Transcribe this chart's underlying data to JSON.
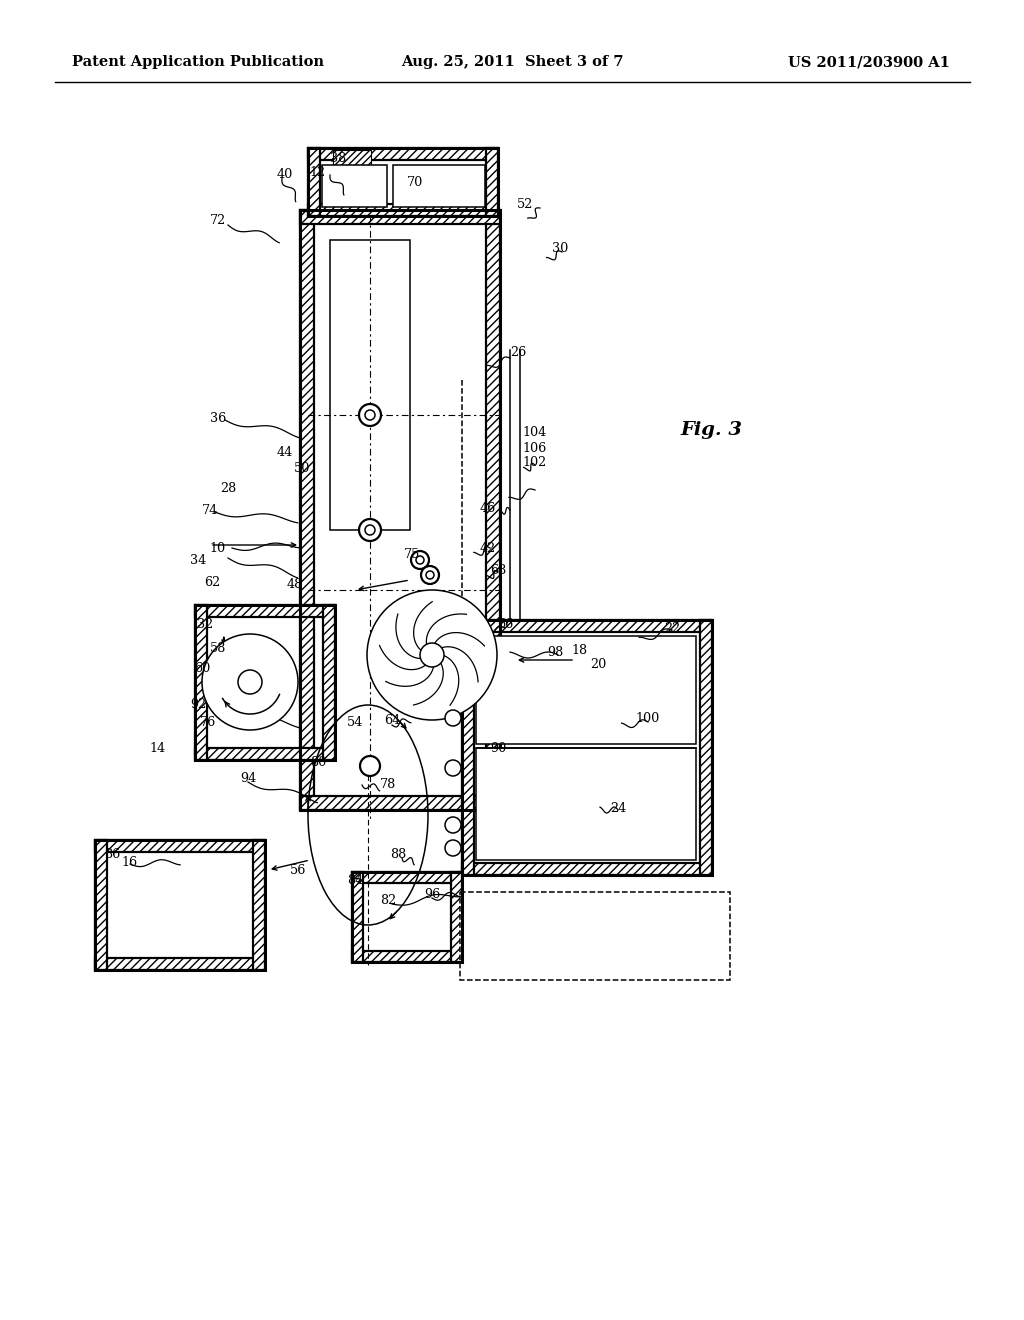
{
  "bg_color": "#ffffff",
  "header_left": "Patent Application Publication",
  "header_mid": "Aug. 25, 2011  Sheet 3 of 7",
  "header_right": "US 2011/203900 A1",
  "fig_label": "Fig. 3"
}
